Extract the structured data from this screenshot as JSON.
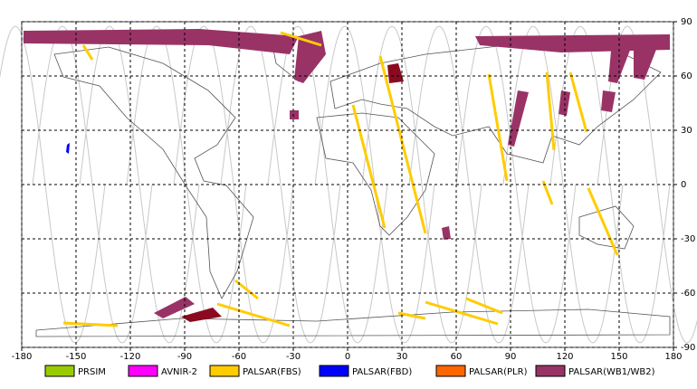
{
  "chart_data": {
    "type": "map",
    "xlim": [
      -180,
      180
    ],
    "ylim": [
      -90,
      90
    ],
    "xticks": [
      -180,
      -150,
      -120,
      -90,
      -60,
      -30,
      0,
      30,
      60,
      90,
      120,
      150,
      180
    ],
    "yticks": [
      -90,
      -60,
      -30,
      0,
      30,
      60,
      90
    ],
    "grid": true,
    "legend": [
      {
        "name": "PRSIM",
        "color": "#99cc00"
      },
      {
        "name": "AVNIR-2",
        "color": "#ff00ff"
      },
      {
        "name": "PALSAR(FBS)",
        "color": "#ffcc00"
      },
      {
        "name": "PALSAR(FBD)",
        "color": "#0000ff"
      },
      {
        "name": "PALSAR(PLR)",
        "color": "#ff6600"
      },
      {
        "name": "PALSAR(WB1/WB2)",
        "color": "#993366"
      }
    ]
  }
}
